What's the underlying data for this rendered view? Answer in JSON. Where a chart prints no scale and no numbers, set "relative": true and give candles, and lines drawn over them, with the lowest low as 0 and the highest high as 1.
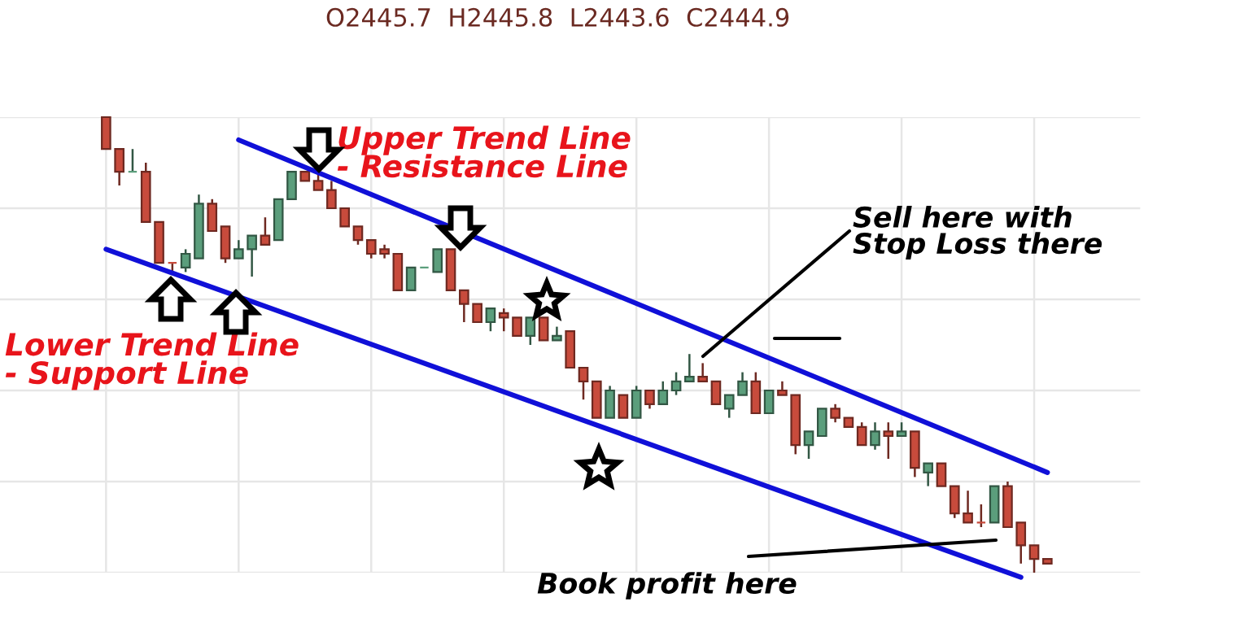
{
  "chart_data": {
    "type": "candlestick",
    "relative": true,
    "subtitle": "O2445.7  H2445.8  L2443.6  C2444.9",
    "categories": [
      null,
      null,
      null,
      null,
      null,
      null,
      null,
      null,
      null,
      null,
      null,
      null,
      null,
      null,
      null,
      null,
      null,
      null,
      null,
      null,
      null,
      null,
      null,
      null,
      null,
      null,
      null,
      null,
      null,
      null,
      null,
      null,
      null,
      null,
      null,
      null,
      null,
      null,
      null,
      null,
      null,
      null,
      null,
      null,
      null,
      null,
      null,
      null,
      null,
      null,
      null,
      null,
      null,
      null,
      null,
      null,
      null,
      null,
      null,
      null,
      null,
      null,
      null,
      null,
      null,
      null,
      null,
      null,
      null,
      null,
      null,
      null
    ],
    "ohlc": [
      [
        1.0,
        1.0,
        0.93,
        0.93
      ],
      [
        0.93,
        0.93,
        0.85,
        0.88
      ],
      [
        0.88,
        0.93,
        0.88,
        0.88
      ],
      [
        0.88,
        0.9,
        0.77,
        0.77
      ],
      [
        0.77,
        0.77,
        0.68,
        0.68
      ],
      [
        0.68,
        0.68,
        0.66,
        0.68
      ],
      [
        0.67,
        0.71,
        0.66,
        0.7
      ],
      [
        0.69,
        0.83,
        0.69,
        0.81
      ],
      [
        0.81,
        0.82,
        0.75,
        0.75
      ],
      [
        0.76,
        0.76,
        0.68,
        0.69
      ],
      [
        0.69,
        0.73,
        0.69,
        0.71
      ],
      [
        0.71,
        0.74,
        0.65,
        0.74
      ],
      [
        0.74,
        0.78,
        0.72,
        0.72
      ],
      [
        0.73,
        0.82,
        0.73,
        0.82
      ],
      [
        0.82,
        0.88,
        0.82,
        0.88
      ],
      [
        0.88,
        0.88,
        0.86,
        0.86
      ],
      [
        0.86,
        0.88,
        0.84,
        0.84
      ],
      [
        0.84,
        0.86,
        0.8,
        0.8
      ],
      [
        0.8,
        0.8,
        0.76,
        0.76
      ],
      [
        0.76,
        0.76,
        0.72,
        0.73
      ],
      [
        0.73,
        0.73,
        0.69,
        0.7
      ],
      [
        0.71,
        0.72,
        0.69,
        0.7
      ],
      [
        0.7,
        0.7,
        0.62,
        0.62
      ],
      [
        0.62,
        0.67,
        0.62,
        0.67
      ],
      [
        0.67,
        0.67,
        0.67,
        0.67
      ],
      [
        0.66,
        0.71,
        0.66,
        0.71
      ],
      [
        0.71,
        0.71,
        0.62,
        0.62
      ],
      [
        0.62,
        0.62,
        0.55,
        0.59
      ],
      [
        0.59,
        0.59,
        0.55,
        0.55
      ],
      [
        0.55,
        0.58,
        0.53,
        0.58
      ],
      [
        0.57,
        0.58,
        0.53,
        0.56
      ],
      [
        0.56,
        0.56,
        0.52,
        0.52
      ],
      [
        0.52,
        0.56,
        0.5,
        0.56
      ],
      [
        0.56,
        0.56,
        0.51,
        0.51
      ],
      [
        0.51,
        0.54,
        0.51,
        0.52
      ],
      [
        0.53,
        0.53,
        0.45,
        0.45
      ],
      [
        0.45,
        0.45,
        0.38,
        0.42
      ],
      [
        0.42,
        0.42,
        0.34,
        0.34
      ],
      [
        0.34,
        0.41,
        0.34,
        0.4
      ],
      [
        0.39,
        0.39,
        0.34,
        0.34
      ],
      [
        0.34,
        0.41,
        0.34,
        0.4
      ],
      [
        0.4,
        0.4,
        0.36,
        0.37
      ],
      [
        0.37,
        0.42,
        0.37,
        0.4
      ],
      [
        0.4,
        0.44,
        0.39,
        0.42
      ],
      [
        0.42,
        0.48,
        0.42,
        0.43
      ],
      [
        0.43,
        0.46,
        0.42,
        0.42
      ],
      [
        0.42,
        0.42,
        0.37,
        0.37
      ],
      [
        0.36,
        0.39,
        0.34,
        0.39
      ],
      [
        0.39,
        0.44,
        0.39,
        0.42
      ],
      [
        0.42,
        0.44,
        0.35,
        0.35
      ],
      [
        0.35,
        0.4,
        0.35,
        0.4
      ],
      [
        0.4,
        0.42,
        0.39,
        0.39
      ],
      [
        0.39,
        0.39,
        0.26,
        0.28
      ],
      [
        0.28,
        0.31,
        0.25,
        0.31
      ],
      [
        0.3,
        0.36,
        0.3,
        0.36
      ],
      [
        0.36,
        0.37,
        0.33,
        0.34
      ],
      [
        0.34,
        0.34,
        0.32,
        0.32
      ],
      [
        0.32,
        0.33,
        0.28,
        0.28
      ],
      [
        0.28,
        0.33,
        0.27,
        0.31
      ],
      [
        0.31,
        0.33,
        0.25,
        0.3
      ],
      [
        0.3,
        0.33,
        0.3,
        0.31
      ],
      [
        0.31,
        0.31,
        0.21,
        0.23
      ],
      [
        0.22,
        0.24,
        0.19,
        0.24
      ],
      [
        0.24,
        0.24,
        0.19,
        0.19
      ],
      [
        0.19,
        0.19,
        0.12,
        0.13
      ],
      [
        0.13,
        0.18,
        0.11,
        0.11
      ],
      [
        0.11,
        0.15,
        0.1,
        0.11
      ],
      [
        0.11,
        0.19,
        0.11,
        0.19
      ],
      [
        0.19,
        0.2,
        0.1,
        0.1
      ],
      [
        0.11,
        0.11,
        0.02,
        0.06
      ],
      [
        0.06,
        0.06,
        0.0,
        0.03
      ],
      [
        0.03,
        0.03,
        0.02,
        0.02
      ]
    ],
    "colors": [
      "#c84b3c",
      "#c84b3c",
      "#5b9e7c",
      "#c84b3c",
      "#c84b3c",
      "#c84b3c",
      "#5b9e7c",
      "#5b9e7c",
      "#c84b3c",
      "#c84b3c",
      "#5b9e7c",
      "#5b9e7c",
      "#c84b3c",
      "#5b9e7c",
      "#5b9e7c",
      "#c84b3c",
      "#c84b3c",
      "#c84b3c",
      "#c84b3c",
      "#c84b3c",
      "#c84b3c",
      "#c84b3c",
      "#c84b3c",
      "#5b9e7c",
      "#5b9e7c",
      "#5b9e7c",
      "#c84b3c",
      "#c84b3c",
      "#c84b3c",
      "#5b9e7c",
      "#c84b3c",
      "#c84b3c",
      "#5b9e7c",
      "#c84b3c",
      "#5b9e7c",
      "#c84b3c",
      "#c84b3c",
      "#c84b3c",
      "#5b9e7c",
      "#c84b3c",
      "#5b9e7c",
      "#c84b3c",
      "#5b9e7c",
      "#5b9e7c",
      "#5b9e7c",
      "#c84b3c",
      "#c84b3c",
      "#5b9e7c",
      "#5b9e7c",
      "#c84b3c",
      "#5b9e7c",
      "#c84b3c",
      "#c84b3c",
      "#5b9e7c",
      "#5b9e7c",
      "#c84b3c",
      "#c84b3c",
      "#c84b3c",
      "#5b9e7c",
      "#c84b3c",
      "#5b9e7c",
      "#c84b3c",
      "#5b9e7c",
      "#c84b3c",
      "#c84b3c",
      "#c84b3c",
      "#c84b3c",
      "#5b9e7c",
      "#c84b3c",
      "#c84b3c",
      "#c84b3c",
      "#c84b3c"
    ],
    "series": [
      {
        "type": "line",
        "color": "#1010d8",
        "values": [
          null,
          null,
          null,
          null,
          null,
          null,
          null,
          null,
          null,
          null,
          0.95,
          null,
          null,
          null,
          null,
          null,
          null,
          null,
          null,
          null,
          null,
          null,
          null,
          null,
          null,
          null,
          null,
          null,
          null,
          null,
          null,
          null,
          null,
          null,
          null,
          null,
          null,
          null,
          null,
          null,
          null,
          null,
          null,
          null,
          null,
          null,
          null,
          null,
          null,
          null,
          null,
          null,
          null,
          null,
          null,
          null,
          null,
          null,
          null,
          null,
          null,
          null,
          null,
          null,
          null,
          null,
          null,
          null,
          null,
          null,
          null,
          0.22
        ]
      },
      {
        "type": "line",
        "color": "#1010d8",
        "values": [
          0.71,
          null,
          null,
          null,
          null,
          null,
          null,
          null,
          null,
          null,
          null,
          null,
          null,
          null,
          null,
          null,
          null,
          null,
          null,
          null,
          null,
          null,
          null,
          null,
          null,
          null,
          null,
          null,
          null,
          null,
          null,
          null,
          null,
          null,
          null,
          null,
          null,
          null,
          null,
          null,
          null,
          null,
          null,
          null,
          null,
          null,
          null,
          null,
          null,
          null,
          null,
          null,
          null,
          null,
          null,
          null,
          null,
          null,
          null,
          null,
          null,
          null,
          null,
          null,
          null,
          null,
          null,
          null,
          null,
          -0.01,
          null,
          null
        ]
      }
    ],
    "annotations": [
      "Upper Trend Line\n- Resistance Line",
      "Lower Trend Line\n- Support Line",
      "Sell here with\nStop Loss there",
      "Book profit here"
    ],
    "grid": true,
    "tick_labels": false
  }
}
